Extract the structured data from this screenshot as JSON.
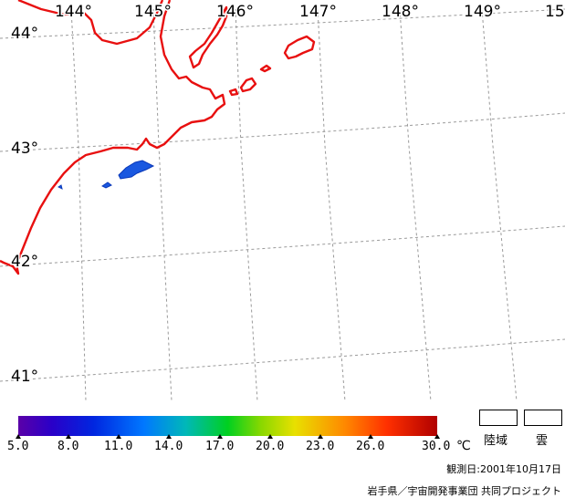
{
  "map": {
    "longitude_labels": [
      "144°",
      "145°",
      "146°",
      "147°",
      "148°",
      "149°",
      "15"
    ],
    "latitude_labels": [
      "44°",
      "43°",
      "42°",
      "41°"
    ],
    "colors": {
      "coast": "#e81010",
      "grid": "#9a9a9a",
      "sst_patch": "#1a58e0"
    }
  },
  "colorbar": {
    "tick_labels": [
      "5.0",
      "8.0",
      "11.0",
      "14.0",
      "17.0",
      "20.0",
      "23.0",
      "26.0",
      "30.0"
    ],
    "unit": "℃",
    "min": 5.0,
    "max": 30.0
  },
  "legend": {
    "land_label": "陸域",
    "cloud_label": "雲"
  },
  "footer": {
    "observation_date": "観測日:2001年10月17日",
    "credit": "岩手県／宇宙開発事業団 共同プロジェクト"
  }
}
